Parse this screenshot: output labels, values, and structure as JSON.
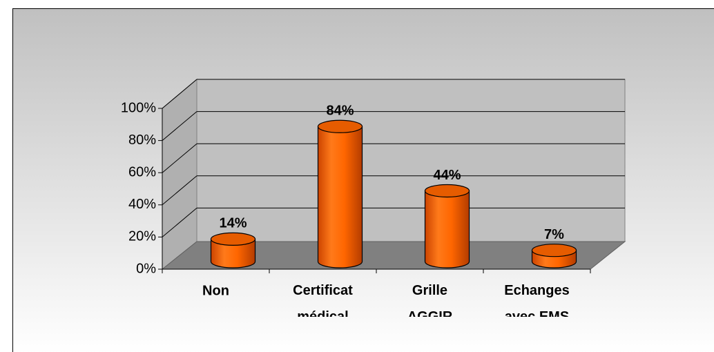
{
  "chart_data": {
    "type": "bar3d",
    "categories": [
      "Non",
      "Certificat médical",
      "Grille AGGIR",
      "Echanges avec EMS"
    ],
    "values": [
      14,
      84,
      44,
      7
    ],
    "value_labels": [
      "14%",
      "84%",
      "44%",
      "7%"
    ],
    "color": "#ff6600",
    "ylim": [
      0,
      100
    ],
    "yticks": [
      {
        "value": 0,
        "label": "0%"
      },
      {
        "value": 20,
        "label": "20%"
      },
      {
        "value": 40,
        "label": "40%"
      },
      {
        "value": 60,
        "label": "60%"
      },
      {
        "value": 80,
        "label": "80%"
      },
      {
        "value": 100,
        "label": "100%"
      }
    ],
    "grid": true
  }
}
